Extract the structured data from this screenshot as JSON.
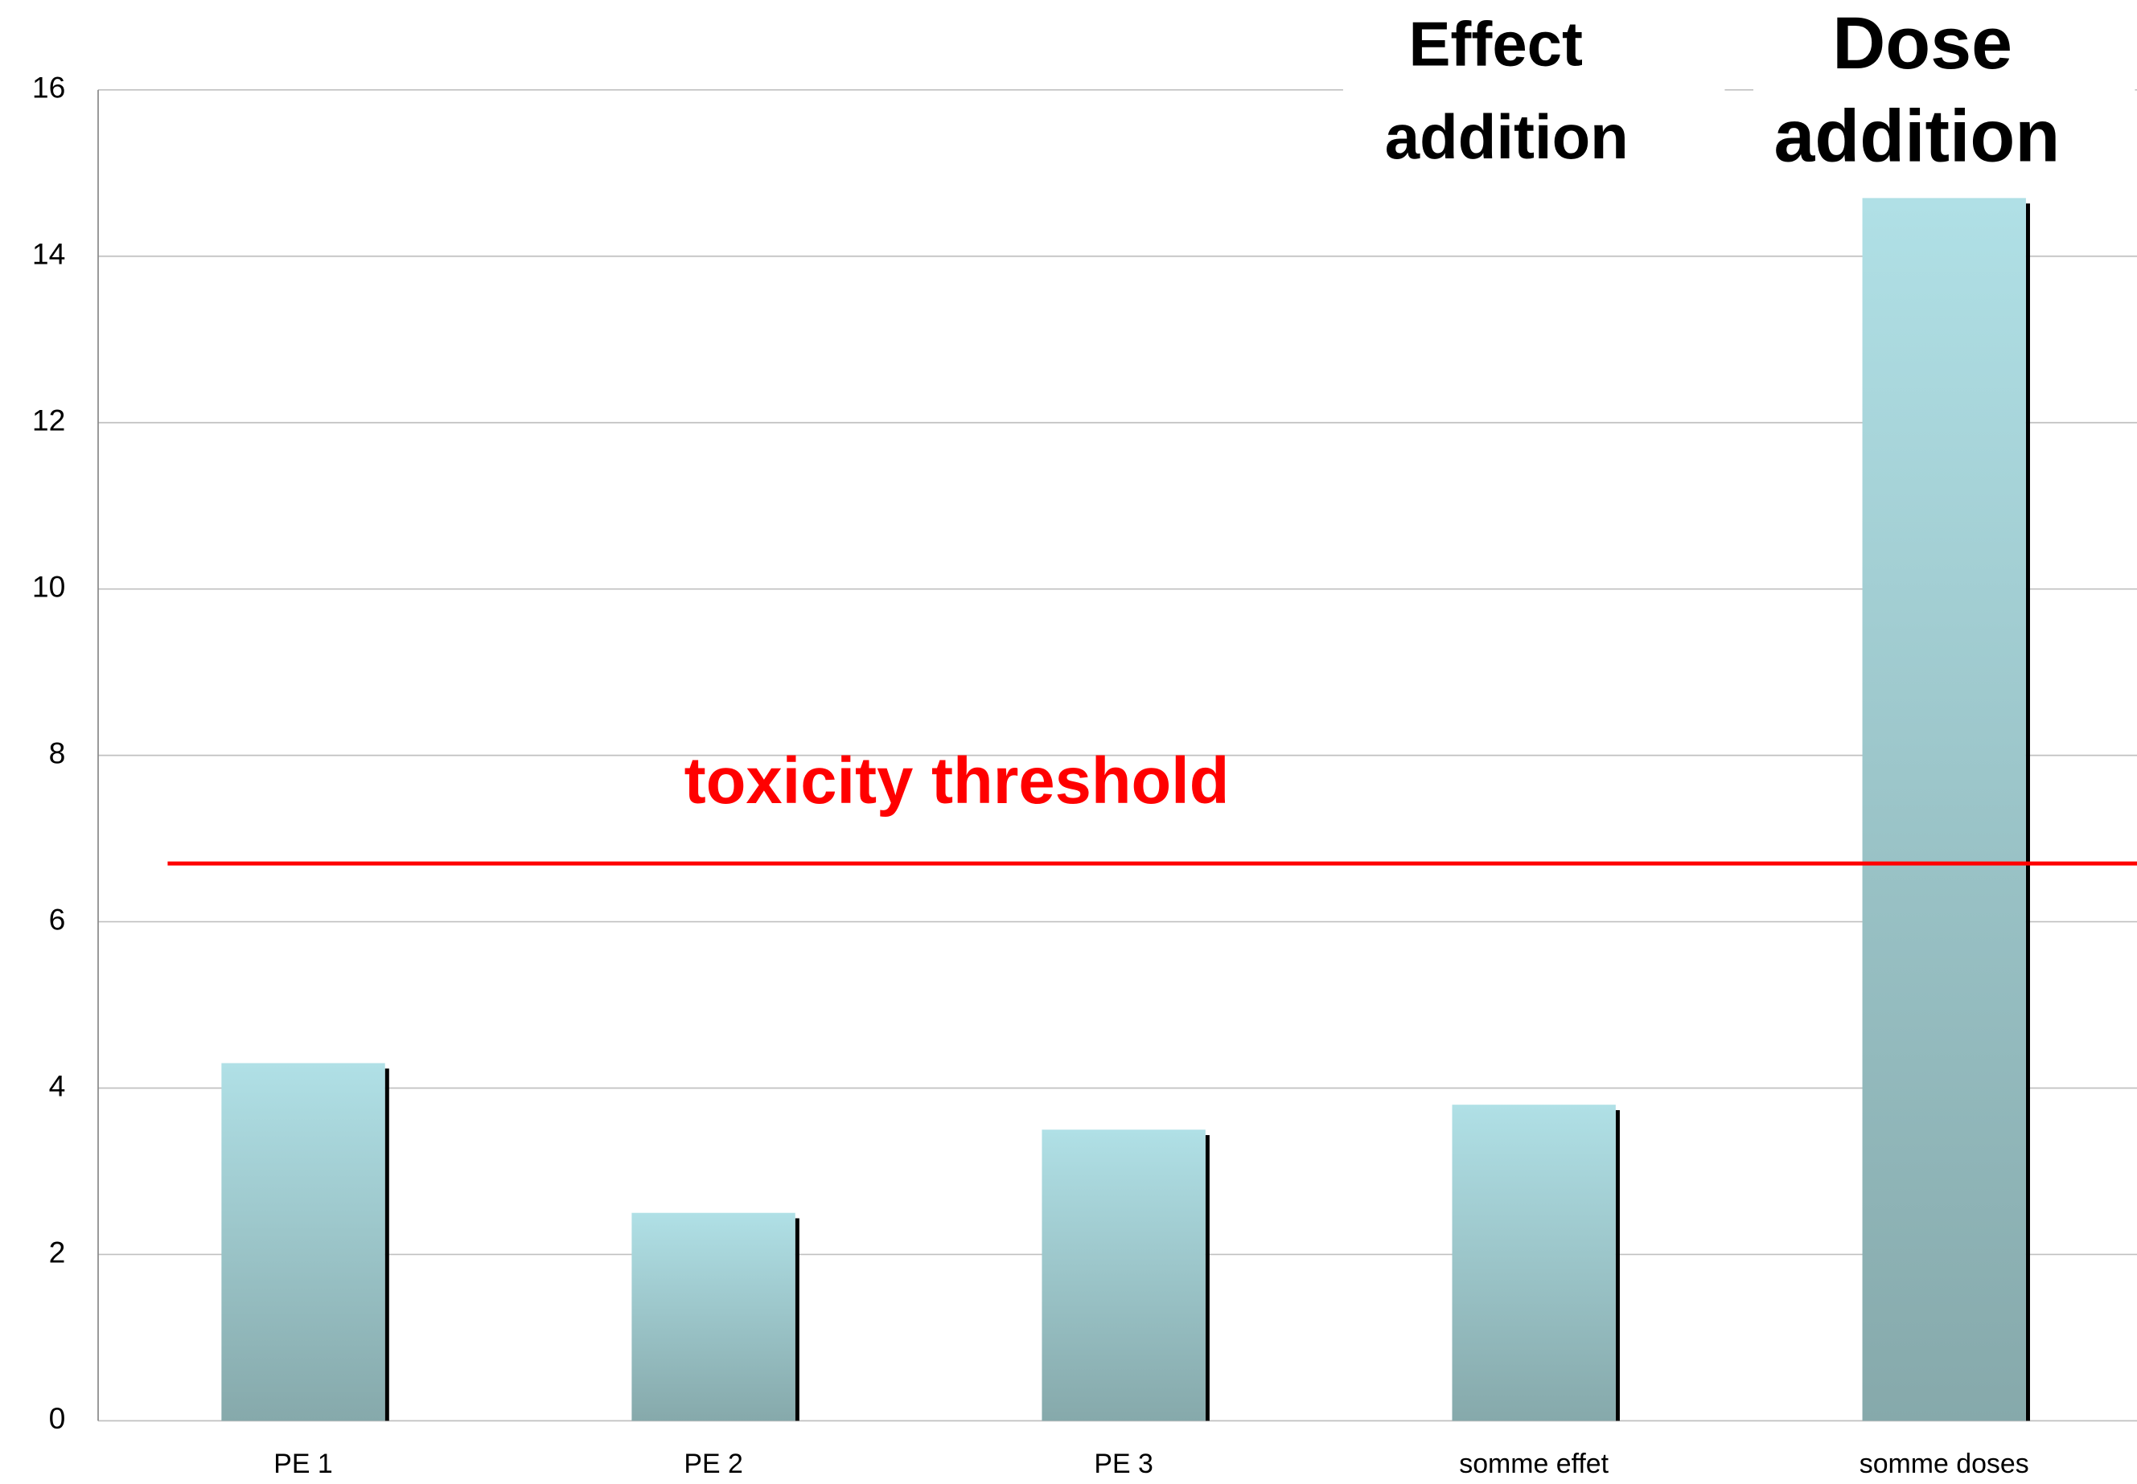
{
  "chart_data": {
    "type": "bar",
    "categories": [
      "PE 1",
      "PE 2",
      "PE 3",
      "somme effet",
      "somme doses"
    ],
    "values": [
      4.3,
      2.5,
      3.5,
      3.8,
      14.7
    ],
    "color": "#b0e0e6",
    "ylim": [
      0,
      16
    ],
    "yticks": [
      0,
      2,
      4,
      6,
      8,
      10,
      12,
      14,
      16
    ],
    "grid": true,
    "threshold": {
      "value": 6.7,
      "label": "toxicity threshold",
      "color": "#ff0000"
    },
    "annotations": [
      {
        "lines": [
          "Effect",
          "addition"
        ],
        "category": 3
      },
      {
        "lines": [
          "Dose",
          "addition"
        ],
        "category": 4
      }
    ]
  }
}
